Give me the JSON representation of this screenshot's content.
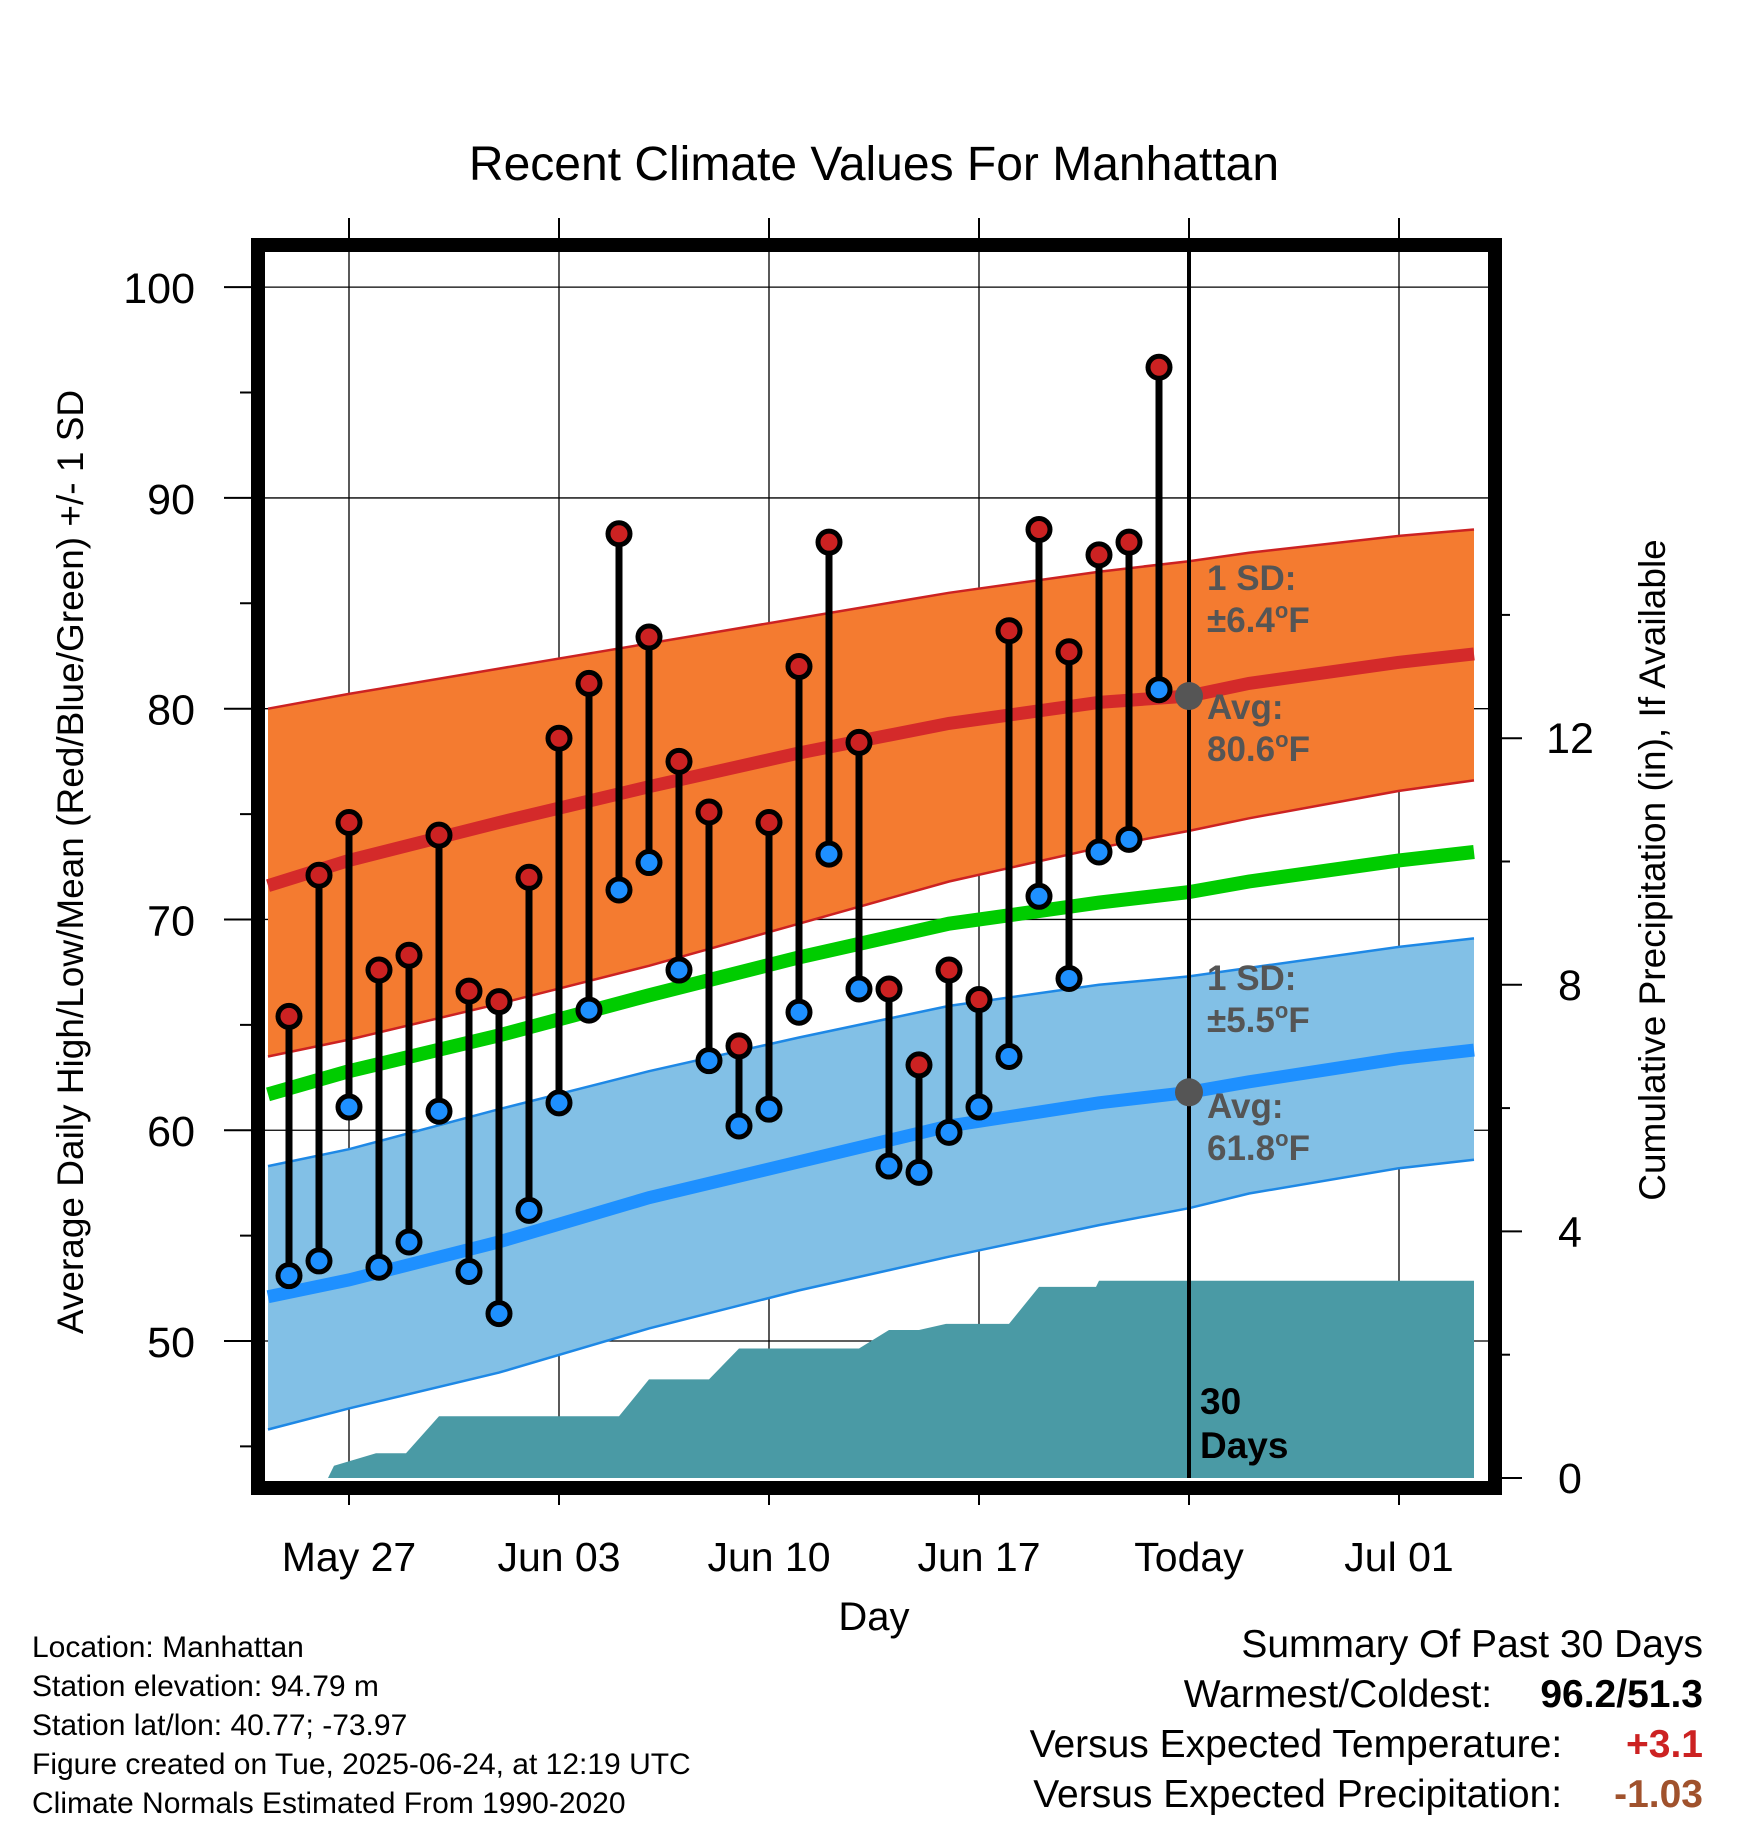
{
  "chart_data": {
    "type": "line",
    "title": "Recent Climate Values For Manhattan",
    "xlabel": "Day",
    "ylabel": "Average Daily High/Low/Mean (Red/Blue/Green) +/- 1 SD",
    "ylabel_right": "Cumulative Precipitation (in), If Available",
    "ylim": [
      43.5,
      102
    ],
    "y2lim": [
      0,
      20
    ],
    "yticks": [
      50,
      60,
      70,
      80,
      90,
      100
    ],
    "y2ticks": [
      0,
      4,
      8,
      12
    ],
    "x_ticks": [
      {
        "day": 0,
        "label": "May 27"
      },
      {
        "day": 7,
        "label": "Jun 03"
      },
      {
        "day": 14,
        "label": "Jun 10"
      },
      {
        "day": 21,
        "label": "Jun 17"
      },
      {
        "day": 28,
        "label": "Today"
      },
      {
        "day": 35,
        "label": "Jul 01"
      }
    ],
    "x_range_days": [
      -2.7,
      37.5
    ],
    "grid": true,
    "observed": {
      "days": [
        -2,
        -1,
        0,
        1,
        2,
        3,
        4,
        5,
        6,
        7,
        8,
        9,
        10,
        11,
        12,
        13,
        14,
        15,
        16,
        17,
        18,
        19,
        20,
        21,
        22,
        23,
        24,
        25,
        26,
        27
      ],
      "highs": [
        65.4,
        72.1,
        74.6,
        67.6,
        68.3,
        74.0,
        66.6,
        66.1,
        72.0,
        78.6,
        81.2,
        88.3,
        83.4,
        77.5,
        75.1,
        64.0,
        74.6,
        82.0,
        87.9,
        78.4,
        66.7,
        63.1,
        67.6,
        66.2,
        83.7,
        88.5,
        82.7,
        87.3,
        87.9,
        96.2
      ],
      "lows": [
        53.1,
        53.8,
        61.1,
        53.5,
        54.7,
        60.9,
        53.3,
        51.3,
        56.2,
        61.3,
        65.7,
        71.4,
        72.7,
        67.6,
        63.3,
        60.2,
        61.0,
        65.6,
        73.1,
        66.7,
        58.3,
        58.0,
        59.9,
        61.1,
        63.5,
        71.1,
        67.2,
        73.2,
        73.8,
        80.9
      ]
    },
    "normals": {
      "days": [
        -2.7,
        0,
        5,
        10,
        15,
        20,
        25,
        28,
        30,
        35,
        37.5
      ],
      "high_avg": [
        71.6,
        72.8,
        74.6,
        76.3,
        77.9,
        79.3,
        80.3,
        80.6,
        81.2,
        82.2,
        82.6
      ],
      "high_sd_top": [
        80.0,
        80.7,
        81.9,
        83.1,
        84.3,
        85.5,
        86.5,
        87.0,
        87.4,
        88.2,
        88.5
      ],
      "high_sd_bottom": [
        63.5,
        64.3,
        66.0,
        67.8,
        69.8,
        71.8,
        73.4,
        74.2,
        74.8,
        76.1,
        76.6
      ],
      "mean_avg": [
        61.7,
        62.8,
        64.5,
        66.4,
        68.2,
        69.8,
        70.8,
        71.3,
        71.8,
        72.8,
        73.2
      ],
      "low_avg": [
        52.1,
        52.9,
        54.7,
        56.8,
        58.5,
        60.2,
        61.3,
        61.8,
        62.3,
        63.4,
        63.8
      ],
      "low_sd_top": [
        58.3,
        59.1,
        61.0,
        62.8,
        64.4,
        65.9,
        66.9,
        67.3,
        67.7,
        68.7,
        69.1
      ],
      "low_sd_bottom": [
        45.8,
        46.8,
        48.5,
        50.6,
        52.4,
        54.0,
        55.5,
        56.3,
        57.0,
        58.2,
        58.6
      ]
    },
    "precip": {
      "days": [
        -2.7,
        -0.7,
        -0.5,
        0.9,
        1.0,
        1.9,
        3.0,
        4.0,
        9.0,
        10.0,
        11.0,
        12.0,
        13.0,
        14.0,
        17.0,
        18.0,
        19.0,
        19.9,
        20.0,
        21.9,
        22.0,
        23.0,
        24.9,
        25.0,
        26.0,
        27.0,
        28.0,
        37.5
      ],
      "values": [
        0,
        0,
        0.2,
        0.4,
        0.4,
        0.4,
        1.0,
        1.0,
        1.0,
        1.6,
        1.6,
        1.6,
        2.1,
        2.1,
        2.1,
        2.4,
        2.4,
        2.5,
        2.5,
        2.5,
        2.5,
        3.1,
        3.1,
        3.2,
        3.2,
        3.2,
        3.2,
        3.2
      ]
    },
    "colors": {
      "high_band": "#f47b30",
      "high_band_edge": "#cc2222",
      "high_avg": "#d42a2a",
      "mean_avg": "#00cc00",
      "low_band": "#82c0e6",
      "low_band_edge": "#1e88e5",
      "low_avg": "#1e90ff",
      "precip": "#4a9aa5",
      "high_dot": "#cc2222",
      "low_dot": "#1e90ff",
      "annot": "#555555"
    },
    "annotations": {
      "high_sd_label": "1 SD:",
      "high_sd_value": "±6.4",
      "high_avg_label": "Avg:",
      "high_avg_value": "80.6",
      "low_sd_label": "1 SD:",
      "low_sd_value": "±5.5",
      "low_avg_label": "Avg:",
      "low_avg_value": "61.8",
      "unit_sup": "o",
      "unit": "F",
      "days_number": "30",
      "days_word": "Days"
    }
  },
  "footer": {
    "location": "Location: Manhattan",
    "elevation": "Station elevation: 94.79 m",
    "latlon": "Station lat/lon: 40.77; -73.97",
    "created": "Figure created on Tue, 2025-06-24, at 12:19 UTC",
    "normals": "Climate Normals Estimated From 1990-2020"
  },
  "summary": {
    "title": "Summary Of Past 30 Days",
    "warmest_label": "Warmest/Coldest:",
    "warmest_value": "96.2/51.3",
    "temp_label": "Versus Expected Temperature:",
    "temp_value": "+3.1",
    "temp_color": "#cc2222",
    "precip_label": "Versus Expected Precipitation:",
    "precip_value": "-1.03",
    "precip_color": "#a0522d"
  }
}
